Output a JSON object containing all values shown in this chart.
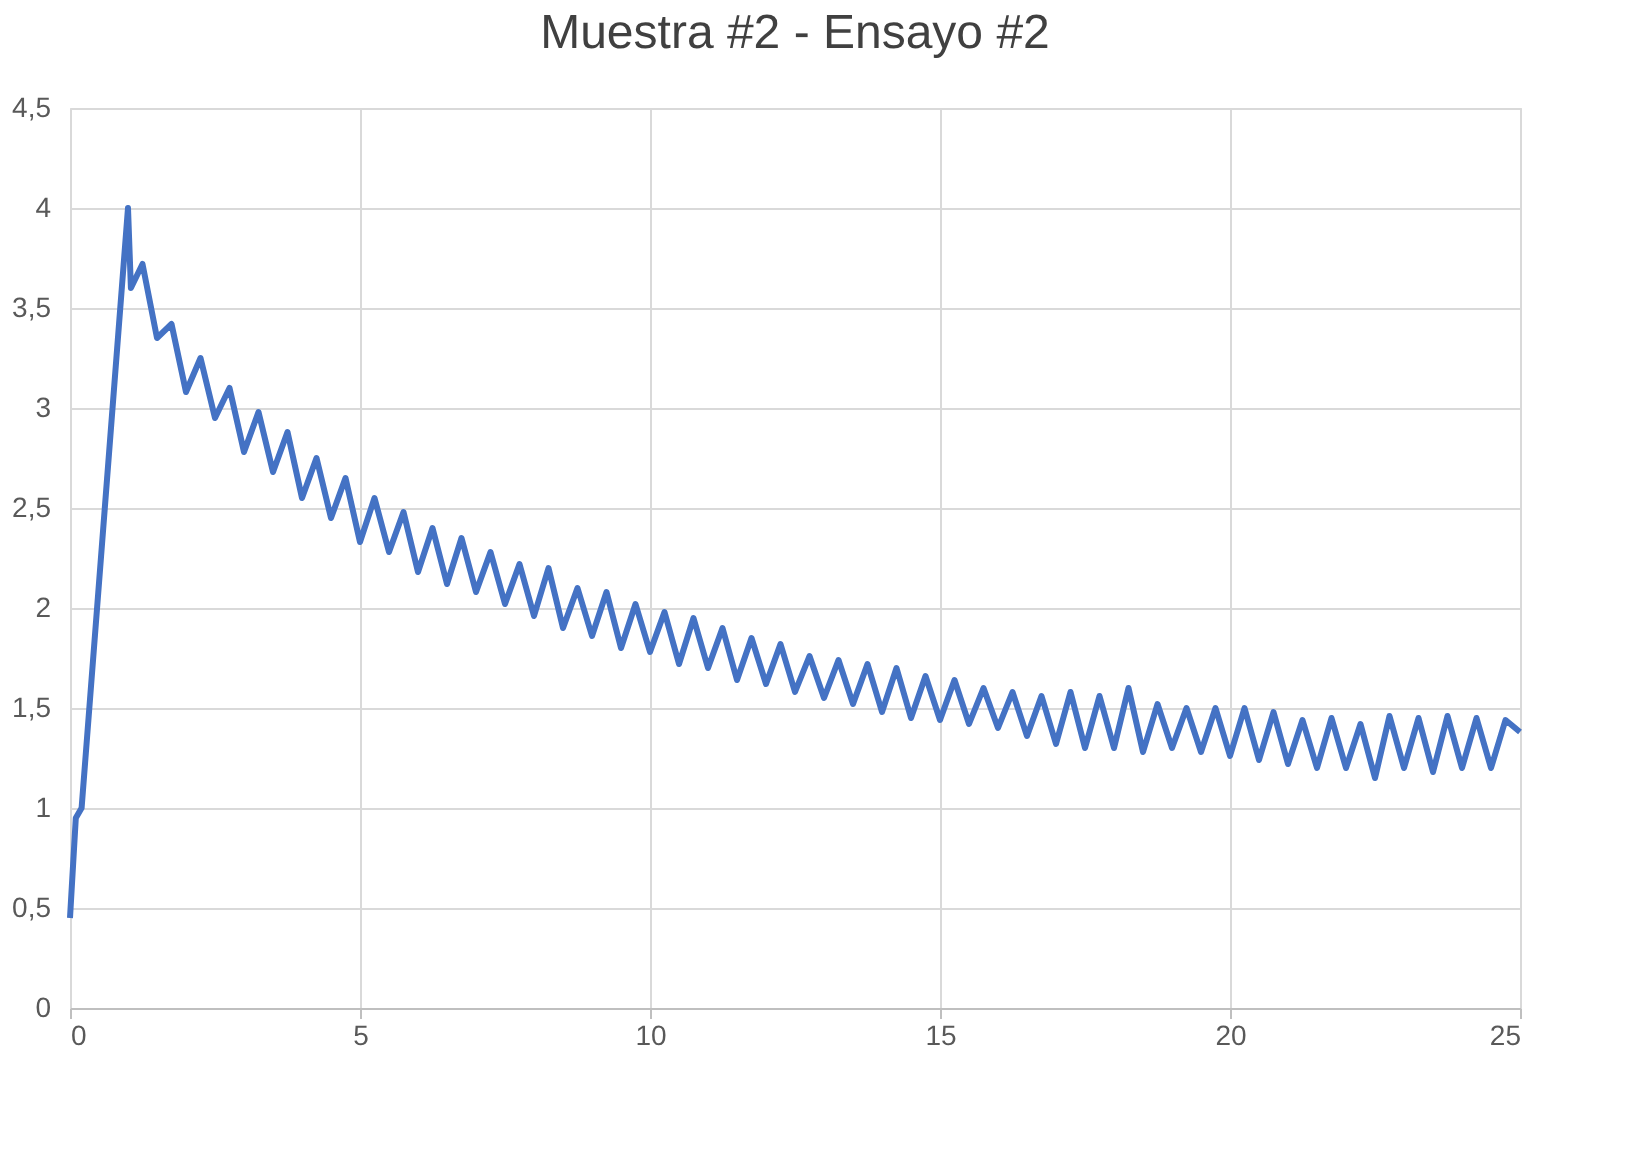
{
  "chart_data": {
    "type": "line",
    "title": "Muestra #2 - Ensayo #2",
    "x": [
      0,
      0.1,
      0.2,
      1.0,
      1.05,
      1.25,
      1.5,
      1.75,
      2,
      2.25,
      2.5,
      2.75,
      3,
      3.25,
      3.5,
      3.75,
      4,
      4.25,
      4.5,
      4.75,
      5,
      5.25,
      5.5,
      5.75,
      6,
      6.25,
      6.5,
      6.75,
      7,
      7.25,
      7.5,
      7.75,
      8,
      8.25,
      8.5,
      8.75,
      9,
      9.25,
      9.5,
      9.75,
      10,
      10.25,
      10.5,
      10.75,
      11,
      11.25,
      11.5,
      11.75,
      12,
      12.25,
      12.5,
      12.75,
      13,
      13.25,
      13.5,
      13.75,
      14,
      14.25,
      14.5,
      14.75,
      15,
      15.25,
      15.5,
      15.75,
      16,
      16.25,
      16.5,
      16.75,
      17,
      17.25,
      17.5,
      17.75,
      18,
      18.25,
      18.5,
      18.75,
      19,
      19.25,
      19.5,
      19.75,
      20,
      20.25,
      20.5,
      20.75,
      21,
      21.25,
      21.5,
      21.75,
      22,
      22.25,
      22.5,
      22.75,
      23,
      23.25,
      23.5,
      23.75,
      24,
      24.25,
      24.5,
      24.75,
      25
    ],
    "series": [
      {
        "color": "#4472c4",
        "values": [
          0.45,
          0.95,
          1.0,
          4.0,
          3.6,
          3.72,
          3.35,
          3.42,
          3.08,
          3.25,
          2.95,
          3.1,
          2.78,
          2.98,
          2.68,
          2.88,
          2.55,
          2.75,
          2.45,
          2.65,
          2.33,
          2.55,
          2.28,
          2.48,
          2.18,
          2.4,
          2.12,
          2.35,
          2.08,
          2.28,
          2.02,
          2.22,
          1.96,
          2.2,
          1.9,
          2.1,
          1.86,
          2.08,
          1.8,
          2.02,
          1.78,
          1.98,
          1.72,
          1.95,
          1.7,
          1.9,
          1.64,
          1.85,
          1.62,
          1.82,
          1.58,
          1.76,
          1.55,
          1.74,
          1.52,
          1.72,
          1.48,
          1.7,
          1.45,
          1.66,
          1.44,
          1.64,
          1.42,
          1.6,
          1.4,
          1.58,
          1.36,
          1.56,
          1.32,
          1.58,
          1.3,
          1.56,
          1.3,
          1.6,
          1.28,
          1.52,
          1.3,
          1.5,
          1.28,
          1.5,
          1.26,
          1.5,
          1.24,
          1.48,
          1.22,
          1.44,
          1.2,
          1.45,
          1.2,
          1.42,
          1.15,
          1.46,
          1.2,
          1.45,
          1.18,
          1.46,
          1.2,
          1.45,
          1.2,
          1.44,
          1.38
        ]
      }
    ],
    "xlim": [
      0,
      25
    ],
    "xticks": [
      0,
      5,
      10,
      15,
      20,
      25
    ],
    "ylim": [
      0,
      4.5
    ],
    "yticks": [
      0,
      {
        "value": 0.5,
        "label": "0,5"
      },
      1,
      {
        "value": 1.5,
        "label": "1,5"
      },
      2,
      {
        "value": 2.5,
        "label": "2,5"
      },
      3,
      {
        "value": 3.5,
        "label": "3,5"
      },
      4,
      {
        "value": 4.5,
        "label": "4,5"
      }
    ],
    "grid": true,
    "legend": false,
    "marker": "none",
    "line_style": "solid"
  }
}
